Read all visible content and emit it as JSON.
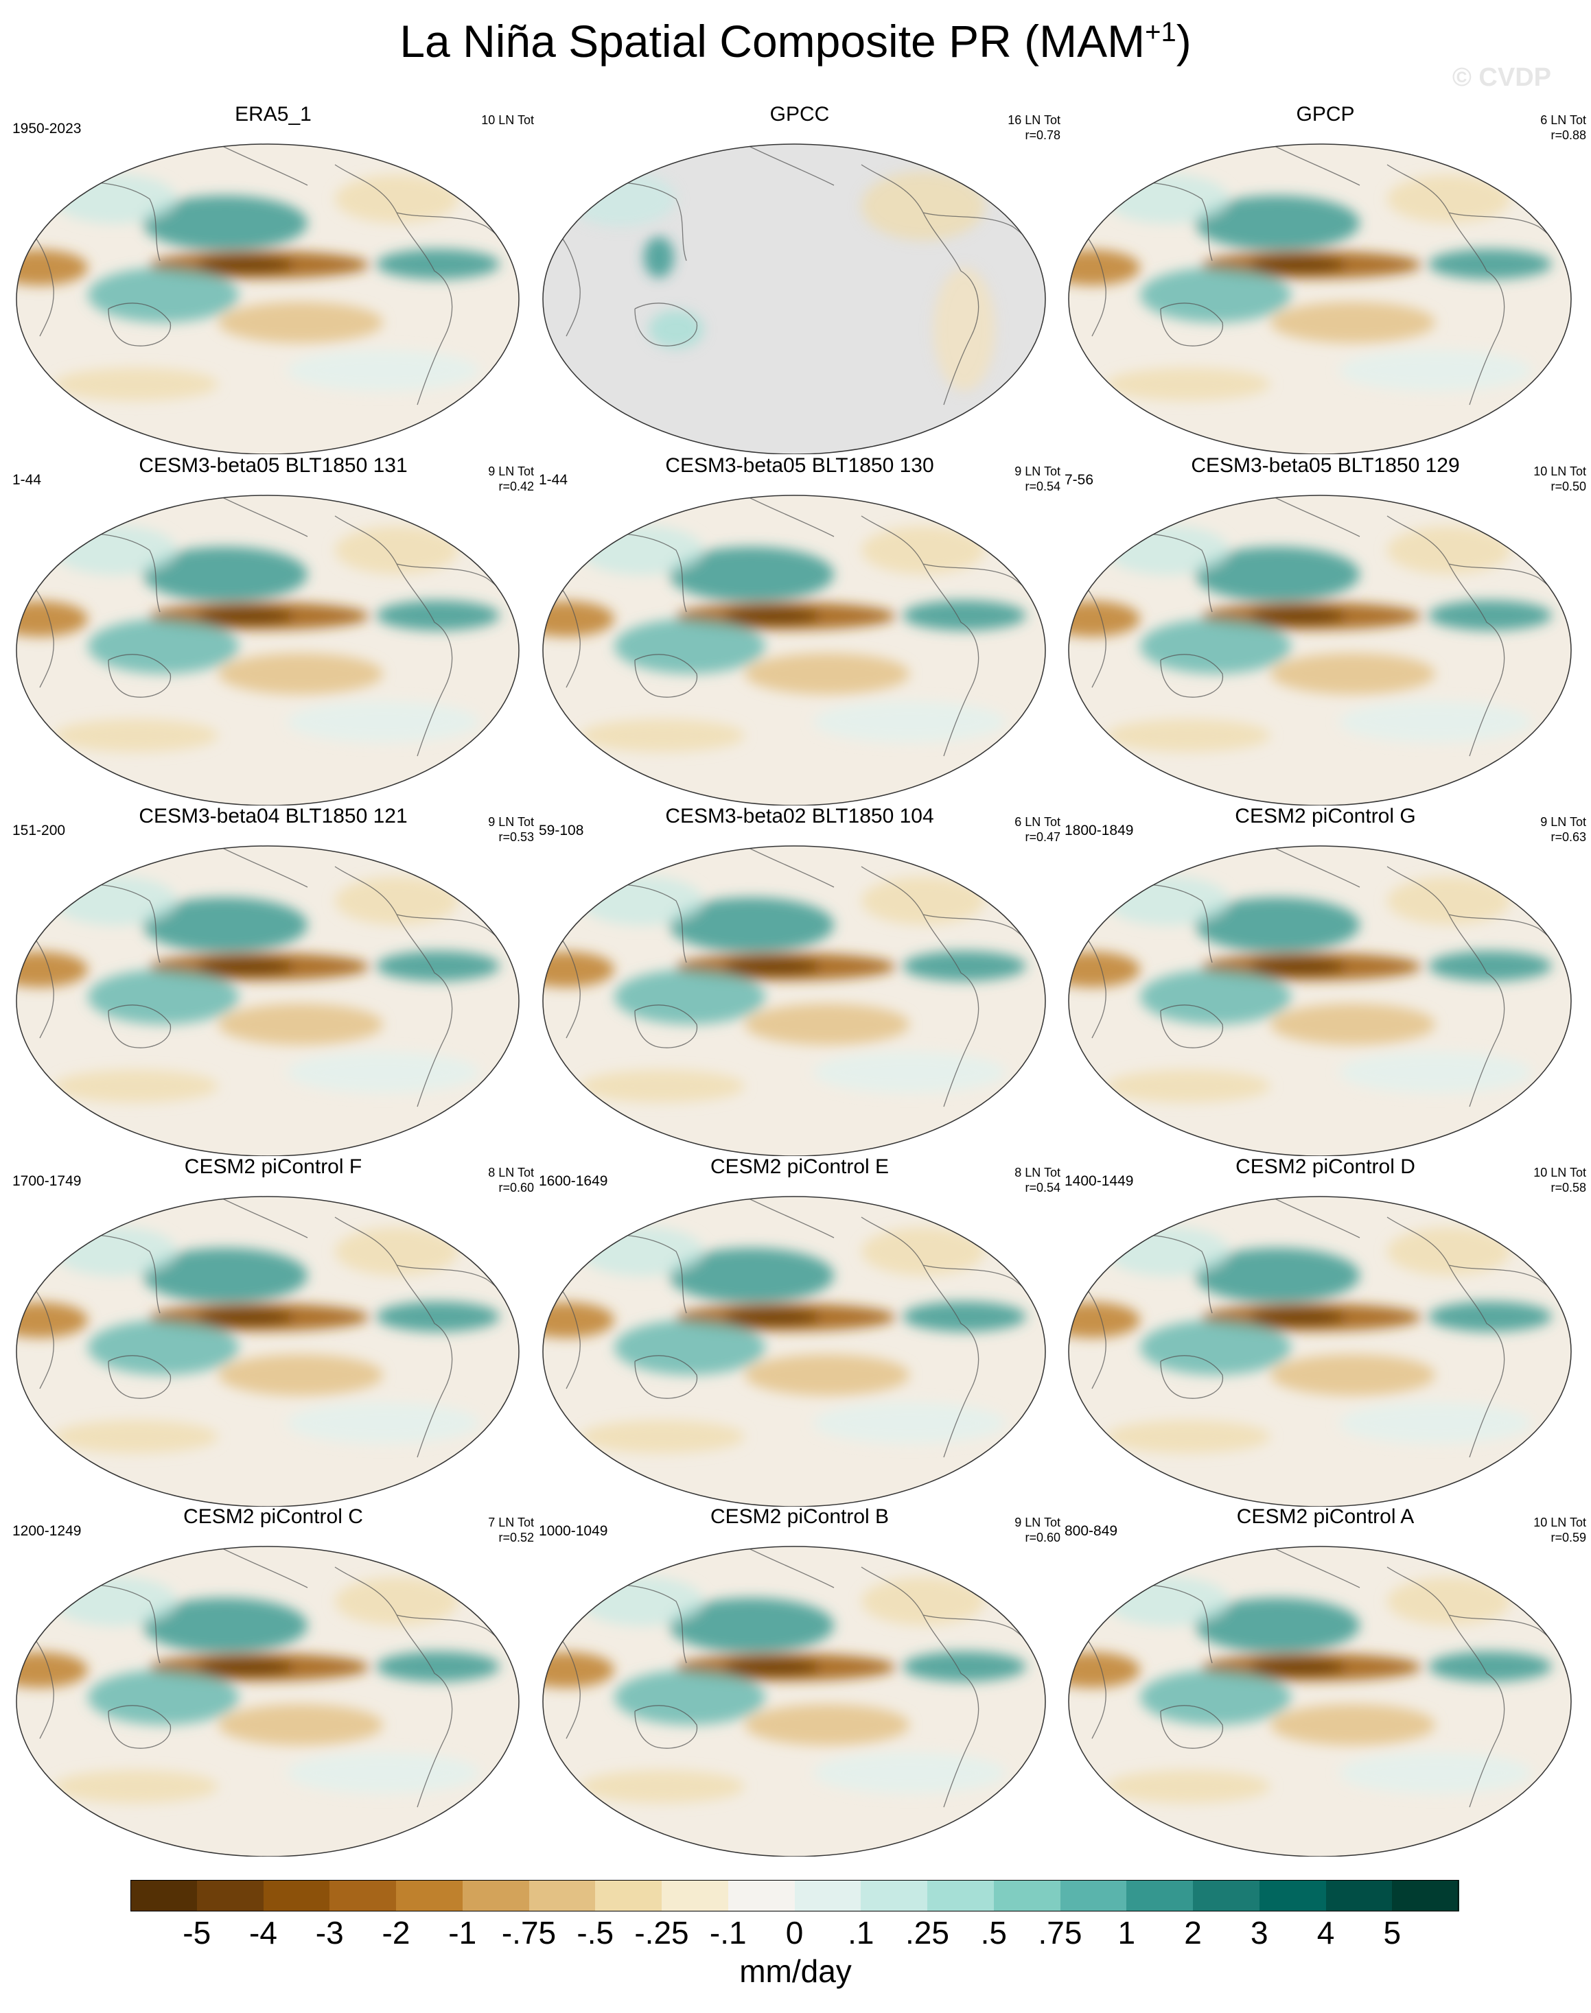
{
  "title": {
    "main": "La Niña Spatial Composite PR (MAM",
    "sup": "+1",
    "close": ")"
  },
  "watermark": "© CVDP",
  "panels": [
    {
      "title": "ERA5_1",
      "left": "1950-2023",
      "right1": "10 LN Tot",
      "right2": "",
      "variant": "obs"
    },
    {
      "title": "GPCC",
      "left": "",
      "right1": "16 LN Tot",
      "right2": "r=0.78",
      "variant": "land"
    },
    {
      "title": "GPCP",
      "left": "",
      "right1": "6 LN Tot",
      "right2": "r=0.88",
      "variant": "obs"
    },
    {
      "title": "CESM3-beta05 BLT1850 131",
      "left": "1-44",
      "right1": "9 LN Tot",
      "right2": "r=0.42",
      "variant": "model"
    },
    {
      "title": "CESM3-beta05 BLT1850 130",
      "left": "1-44",
      "right1": "9 LN Tot",
      "right2": "r=0.54",
      "variant": "model"
    },
    {
      "title": "CESM3-beta05 BLT1850 129",
      "left": "7-56",
      "right1": "10 LN Tot",
      "right2": "r=0.50",
      "variant": "model"
    },
    {
      "title": "CESM3-beta04 BLT1850 121",
      "left": "151-200",
      "right1": "9 LN Tot",
      "right2": "r=0.53",
      "variant": "model"
    },
    {
      "title": "CESM3-beta02 BLT1850 104",
      "left": "59-108",
      "right1": "6 LN Tot",
      "right2": "r=0.47",
      "variant": "model"
    },
    {
      "title": "CESM2 piControl G",
      "left": "1800-1849",
      "right1": "9 LN Tot",
      "right2": "r=0.63",
      "variant": "model"
    },
    {
      "title": "CESM2 piControl F",
      "left": "1700-1749",
      "right1": "8 LN Tot",
      "right2": "r=0.60",
      "variant": "model"
    },
    {
      "title": "CESM2 piControl E",
      "left": "1600-1649",
      "right1": "8 LN Tot",
      "right2": "r=0.54",
      "variant": "model"
    },
    {
      "title": "CESM2 piControl D",
      "left": "1400-1449",
      "right1": "10 LN Tot",
      "right2": "r=0.58",
      "variant": "model"
    },
    {
      "title": "CESM2 piControl C",
      "left": "1200-1249",
      "right1": "7 LN Tot",
      "right2": "r=0.52",
      "variant": "model"
    },
    {
      "title": "CESM2 piControl B",
      "left": "1000-1049",
      "right1": "9 LN Tot",
      "right2": "r=0.60",
      "variant": "model"
    },
    {
      "title": "CESM2 piControl A",
      "left": "800-849",
      "right1": "10 LN Tot",
      "right2": "r=0.59",
      "variant": "model"
    }
  ],
  "colorbar": {
    "colors": [
      "#543005",
      "#6e3f0a",
      "#8c510a",
      "#a66519",
      "#bf812d",
      "#d3a35a",
      "#e3c184",
      "#f0dcaa",
      "#f6ecd0",
      "#f5f3ef",
      "#e2f1ee",
      "#c7eae4",
      "#a6dfd6",
      "#80cdc1",
      "#5ab4ac",
      "#35978f",
      "#1b7b73",
      "#01665e",
      "#014e45",
      "#003c30"
    ],
    "labels": [
      "-5",
      "-4",
      "-3",
      "-2",
      "-1",
      "-.75",
      "-.5",
      "-.25",
      "-.1",
      "0",
      ".1",
      ".25",
      ".5",
      ".75",
      "1",
      "2",
      "3",
      "4",
      "5"
    ],
    "units": "mm/day"
  }
}
